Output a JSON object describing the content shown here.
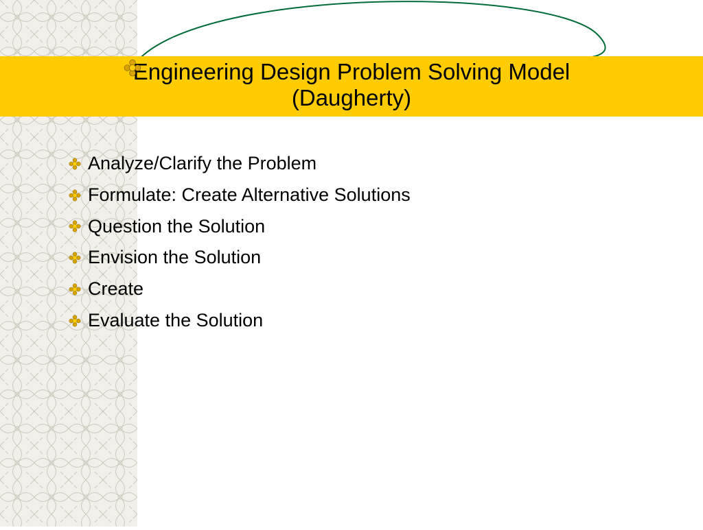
{
  "slide": {
    "title_line1": "Engineering Design Problem Solving Model",
    "title_line2": "(Daugherty)",
    "bullets": [
      "Analyze/Clarify the Problem",
      "Formulate: Create Alternative Solutions",
      "Question the Solution",
      "Envision the Solution",
      "Create",
      "Evaluate the Solution"
    ]
  },
  "style": {
    "title_band_color": "#fecc00",
    "title_text_color": "#000000",
    "title_fontsize": 33,
    "bullet_text_color": "#000000",
    "bullet_fontsize": 27,
    "swoosh_color": "#016c37",
    "swoosh_stroke_width": 2,
    "background_color": "#ffffff",
    "sidebar_pattern_color": "#c8c6b8",
    "sidebar_bg_color": "#f0efe8",
    "bullet_icon": {
      "outer_fill": "#d9a400",
      "inner_fill": "#fecc00",
      "stroke": "#7a5c00"
    }
  }
}
